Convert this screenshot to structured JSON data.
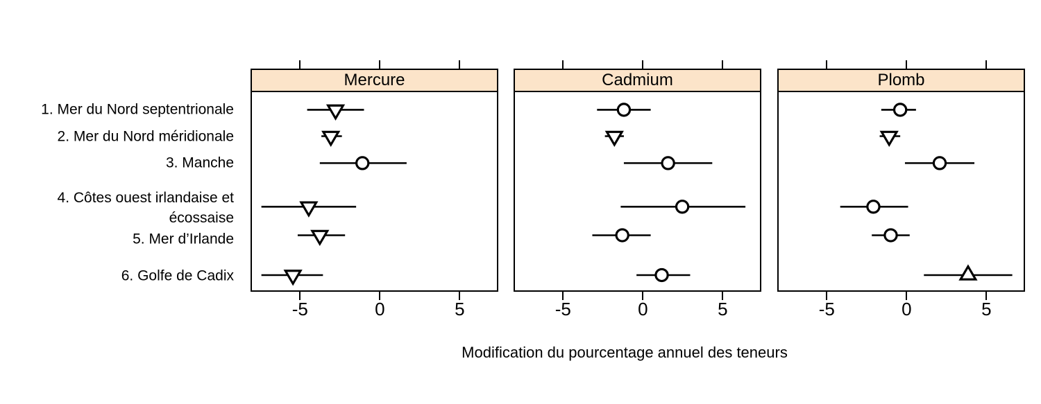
{
  "chart_data": {
    "type": "scatter",
    "subtype": "dotplot-with-error-bars",
    "title": "",
    "xlabel": "Modification du pourcentage annuel des teneurs",
    "ylabel": "",
    "categories": [
      "1. Mer du Nord septentrionale",
      "2. Mer du Nord méridionale",
      "3. Manche",
      "4. Côtes ouest irlandaise et\nécossaise",
      "5. Mer d’Irlande",
      "6. Golfe de Cadix"
    ],
    "xlim": [
      -8.1,
      7.42
    ],
    "x_ticks": [
      -5,
      0,
      5
    ],
    "x_tick_labels": [
      "-5",
      "0",
      "5"
    ],
    "grid": "off",
    "legend": "none",
    "row_fractions": [
      0.089,
      0.222,
      0.358,
      0.578,
      0.722,
      0.923
    ],
    "marker_legend_note": "triangle-down = tendance significative à la baisse, triangle-up = tendance significative à la hausse, circle = pas de tendance significative",
    "panels": [
      {
        "label": "Mercure",
        "points": [
          {
            "category": "1. Mer du Nord septentrionale",
            "value": -2.8,
            "low": -4.6,
            "high": -1.0,
            "marker": "triangle-down"
          },
          {
            "category": "2. Mer du Nord méridionale",
            "value": -3.1,
            "low": -3.7,
            "high": -2.4,
            "marker": "triangle-down"
          },
          {
            "category": "3. Manche",
            "value": -1.1,
            "low": -3.8,
            "high": 1.7,
            "marker": "circle"
          },
          {
            "category": "4. Côtes ouest irlandaise et écossaise",
            "value": -4.5,
            "low": -7.5,
            "high": -1.5,
            "marker": "triangle-down"
          },
          {
            "category": "5. Mer d’Irlande",
            "value": -3.8,
            "low": -5.2,
            "high": -2.2,
            "marker": "triangle-down"
          },
          {
            "category": "6. Golfe de Cadix",
            "value": -5.5,
            "low": -7.5,
            "high": -3.6,
            "marker": "triangle-down"
          }
        ]
      },
      {
        "label": "Cadmium",
        "points": [
          {
            "category": "1. Mer du Nord septentrionale",
            "value": -1.2,
            "low": -2.9,
            "high": 0.5,
            "marker": "circle"
          },
          {
            "category": "2. Mer du Nord méridionale",
            "value": -1.8,
            "low": -2.4,
            "high": -1.2,
            "marker": "triangle-down"
          },
          {
            "category": "3. Manche",
            "value": 1.6,
            "low": -1.2,
            "high": 4.4,
            "marker": "circle"
          },
          {
            "category": "4. Côtes ouest irlandaise et écossaise",
            "value": 2.5,
            "low": -1.4,
            "high": 6.5,
            "marker": "circle"
          },
          {
            "category": "5. Mer d’Irlande",
            "value": -1.3,
            "low": -3.2,
            "high": 0.5,
            "marker": "circle"
          },
          {
            "category": "6. Golfe de Cadix",
            "value": 1.2,
            "low": -0.4,
            "high": 3.0,
            "marker": "circle"
          }
        ]
      },
      {
        "label": "Plomb",
        "points": [
          {
            "category": "1. Mer du Nord septentrionale",
            "value": -0.4,
            "low": -1.6,
            "high": 0.6,
            "marker": "circle"
          },
          {
            "category": "2. Mer du Nord méridionale",
            "value": -1.1,
            "low": -1.7,
            "high": -0.4,
            "marker": "triangle-down"
          },
          {
            "category": "3. Manche",
            "value": 2.1,
            "low": -0.1,
            "high": 4.3,
            "marker": "circle"
          },
          {
            "category": "4. Côtes ouest irlandaise et écossaise",
            "value": -2.1,
            "low": -4.2,
            "high": 0.1,
            "marker": "circle"
          },
          {
            "category": "5. Mer d’Irlande",
            "value": -1.0,
            "low": -2.2,
            "high": 0.2,
            "marker": "circle"
          },
          {
            "category": "6. Golfe de Cadix",
            "value": 3.9,
            "low": 1.1,
            "high": 6.7,
            "marker": "triangle-up"
          }
        ]
      }
    ],
    "colors": {
      "strip_fill": "#fce4c9",
      "border": "#000000",
      "line": "#000000",
      "marker_stroke": "#000000",
      "marker_fill": "#ffffff",
      "background": "#ffffff"
    }
  }
}
